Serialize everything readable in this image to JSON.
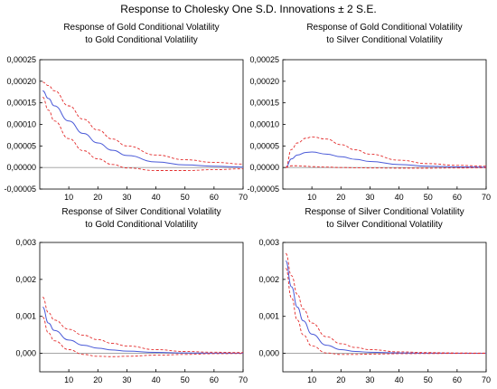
{
  "figure_title": "Response to Cholesky One S.D. Innovations ± 2 S.E.",
  "colors": {
    "response": "#4a5ad8",
    "band": "#e32b2b",
    "axis": "#000000",
    "zero": "#9a9a9a"
  },
  "chart_data": [
    {
      "type": "line",
      "title_lines": [
        "Response of Gold Conditional Volatility",
        "to Gold Conditional Volatility"
      ],
      "xlabel": "",
      "ylabel": "",
      "xlim": [
        0,
        70
      ],
      "ylim": [
        -5e-05,
        0.00025
      ],
      "grid": false,
      "x_ticks": [
        10,
        20,
        30,
        40,
        50,
        60,
        70
      ],
      "y_ticks": [
        -5e-05,
        0,
        5e-05,
        0.0001,
        0.00015,
        0.0002,
        0.00025
      ],
      "y_tick_labels": [
        "-0,00005",
        "0,00000",
        "0,00005",
        "0,00010",
        "0,00015",
        "0,00020",
        "0,00025"
      ],
      "x": [
        1,
        3,
        5,
        10,
        15,
        20,
        25,
        30,
        40,
        50,
        60,
        70
      ],
      "series": [
        {
          "role": "response",
          "values": [
            0.000178,
            0.00016,
            0.000143,
            0.000108,
            7.9e-05,
            5.7e-05,
            4e-05,
            2.8e-05,
            1.3e-05,
            6e-06,
            3e-06,
            1e-06
          ]
        },
        {
          "role": "upper",
          "values": [
            0.000198,
            0.00019,
            0.000178,
            0.000143,
            0.000112,
            8.7e-05,
            6.6e-05,
            5e-05,
            2.9e-05,
            1.8e-05,
            1.2e-05,
            8e-06
          ]
        },
        {
          "role": "lower",
          "values": [
            0.000163,
            0.000133,
            0.000108,
            6.7e-05,
            3.9e-05,
            2e-05,
            7e-06,
            -1e-06,
            -7e-06,
            -7e-06,
            -5e-06,
            -3e-06
          ]
        }
      ]
    },
    {
      "type": "line",
      "title_lines": [
        "Response of Gold Conditional Volatility",
        "to Silver Conditional Volatility"
      ],
      "xlabel": "",
      "ylabel": "",
      "xlim": [
        0,
        70
      ],
      "ylim": [
        -5e-05,
        0.00025
      ],
      "grid": false,
      "x_ticks": [
        10,
        20,
        30,
        40,
        50,
        60,
        70
      ],
      "y_ticks": [
        -5e-05,
        0,
        5e-05,
        0.0001,
        0.00015,
        0.0002,
        0.00025
      ],
      "y_tick_labels": [
        "-0,00005",
        "0,00000",
        "0,00005",
        "0,00010",
        "0,00015",
        "0,00020",
        "0,00025"
      ],
      "x": [
        1,
        3,
        5,
        8,
        10,
        15,
        20,
        25,
        30,
        40,
        50,
        60,
        70
      ],
      "series": [
        {
          "role": "response",
          "values": [
            0,
            2e-05,
            2.9e-05,
            3.5e-05,
            3.6e-05,
            3.1e-05,
            2.5e-05,
            1.9e-05,
            1.4e-05,
            7e-06,
            3e-06,
            1.5e-06,
            7e-07
          ]
        },
        {
          "role": "upper",
          "values": [
            0,
            4.2e-05,
            5.7e-05,
            6.8e-05,
            7.1e-05,
            6.6e-05,
            5.3e-05,
            4.1e-05,
            3.1e-05,
            1.7e-05,
            9e-06,
            5e-06,
            3e-06
          ]
        },
        {
          "role": "lower",
          "values": [
            0,
            4e-06,
            4e-06,
            3e-06,
            2e-06,
            1e-06,
            0,
            -5e-07,
            -1e-06,
            -1.5e-06,
            -1.5e-06,
            -1e-06,
            -8e-07
          ]
        }
      ]
    },
    {
      "type": "line",
      "title_lines": [
        "Response of Silver Conditional Volatility",
        "to Gold Conditional Volatility"
      ],
      "xlabel": "",
      "ylabel": "",
      "xlim": [
        0,
        70
      ],
      "ylim": [
        -0.0005,
        0.003
      ],
      "grid": false,
      "x_ticks": [
        10,
        20,
        30,
        40,
        50,
        60,
        70
      ],
      "y_ticks": [
        0,
        0.001,
        0.002,
        0.003
      ],
      "y_tick_labels": [
        "0,000",
        "0,001",
        "0,002",
        "0,003"
      ],
      "x": [
        1,
        3,
        5,
        10,
        15,
        20,
        25,
        30,
        40,
        50,
        60,
        70
      ],
      "series": [
        {
          "role": "response",
          "values": [
            0.00125,
            0.00082,
            0.00062,
            0.00036,
            0.00022,
            0.00014,
            9e-05,
            6e-05,
            2.5e-05,
            1e-05,
            5e-06,
            2e-06
          ]
        },
        {
          "role": "upper",
          "values": [
            0.00152,
            0.0011,
            0.0009,
            0.00065,
            0.00049,
            0.00037,
            0.00027,
            0.0002,
            0.0001,
            5e-05,
            3e-05,
            2e-05
          ]
        },
        {
          "role": "lower",
          "values": [
            0.00098,
            0.00055,
            0.00034,
            0.0001,
            -3e-05,
            -8e-05,
            -9e-05,
            -8e-05,
            -5e-05,
            -3e-05,
            -1e-05,
            -5e-06
          ]
        }
      ]
    },
    {
      "type": "line",
      "title_lines": [
        "Response of Silver Conditional Volatility",
        "to Silver Conditional Volatility"
      ],
      "xlabel": "",
      "ylabel": "",
      "xlim": [
        0,
        70
      ],
      "ylim": [
        -0.0005,
        0.003
      ],
      "grid": false,
      "x_ticks": [
        10,
        20,
        30,
        40,
        50,
        60,
        70
      ],
      "y_ticks": [
        0,
        0.001,
        0.002,
        0.003
      ],
      "y_tick_labels": [
        "0,000",
        "0,001",
        "0,002",
        "0,003"
      ],
      "x": [
        1,
        3,
        5,
        7,
        10,
        15,
        20,
        25,
        30,
        40,
        50,
        60,
        70
      ],
      "series": [
        {
          "role": "response",
          "values": [
            0.0025,
            0.0018,
            0.00125,
            0.00088,
            0.00052,
            0.00022,
            0.0001,
            5e-05,
            3e-05,
            1e-05,
            5e-06,
            2e-06,
            1e-06
          ]
        },
        {
          "role": "upper",
          "values": [
            0.0027,
            0.0021,
            0.0016,
            0.0012,
            0.00082,
            0.00045,
            0.00026,
            0.00016,
            0.0001,
            4e-05,
            2e-05,
            1e-05,
            5e-06
          ]
        },
        {
          "role": "lower",
          "values": [
            0.0023,
            0.0015,
            0.0009,
            0.0005,
            0.0002,
            1e-05,
            -3e-05,
            -3e-05,
            -2e-05,
            -1e-05,
            -5e-06,
            -3e-06,
            -1e-06
          ]
        }
      ]
    }
  ]
}
